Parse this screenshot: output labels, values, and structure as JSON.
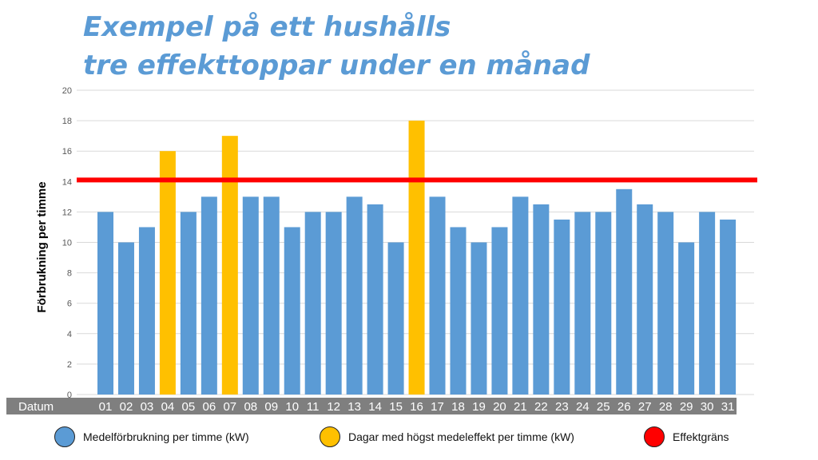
{
  "title_line1": "Exempel på ett hushålls",
  "title_line2": "tre effekttoppar under en månad",
  "colors": {
    "normal": "#5b9bd5",
    "peak": "#ffc000",
    "limit": "#ff0000",
    "datum_band": "#7f7f7f",
    "title": "#5b9bd5"
  },
  "chart_data": {
    "type": "bar",
    "xlabel": "Datum",
    "ylabel": "Förbrukning per timme",
    "ylim": [
      0,
      20
    ],
    "yticks": [
      0,
      2,
      4,
      6,
      8,
      10,
      12,
      14,
      16,
      18,
      20
    ],
    "grid": true,
    "categories": [
      "01",
      "02",
      "03",
      "04",
      "05",
      "06",
      "07",
      "08",
      "09",
      "10",
      "11",
      "12",
      "13",
      "14",
      "15",
      "16",
      "17",
      "18",
      "19",
      "20",
      "21",
      "22",
      "23",
      "24",
      "25",
      "26",
      "27",
      "28",
      "29",
      "30",
      "31"
    ],
    "values": [
      12,
      10,
      11,
      16,
      12,
      13,
      17,
      13,
      13,
      11,
      12,
      12,
      13,
      12.5,
      10,
      18,
      13,
      11,
      10,
      11,
      13,
      12.5,
      11.5,
      12,
      12,
      13.5,
      12.5,
      12,
      10,
      12,
      11.5
    ],
    "peak_days": [
      "04",
      "07",
      "16"
    ],
    "limit_value": 14.1,
    "legend": [
      {
        "label": "Medelförbrukning per timme (kW)",
        "color": "#5b9bd5"
      },
      {
        "label": "Dagar med högst medeleffekt per timme (kW)",
        "color": "#ffc000"
      },
      {
        "label": "Effektgräns",
        "color": "#ff0000"
      }
    ],
    "legend_position": "bottom"
  }
}
